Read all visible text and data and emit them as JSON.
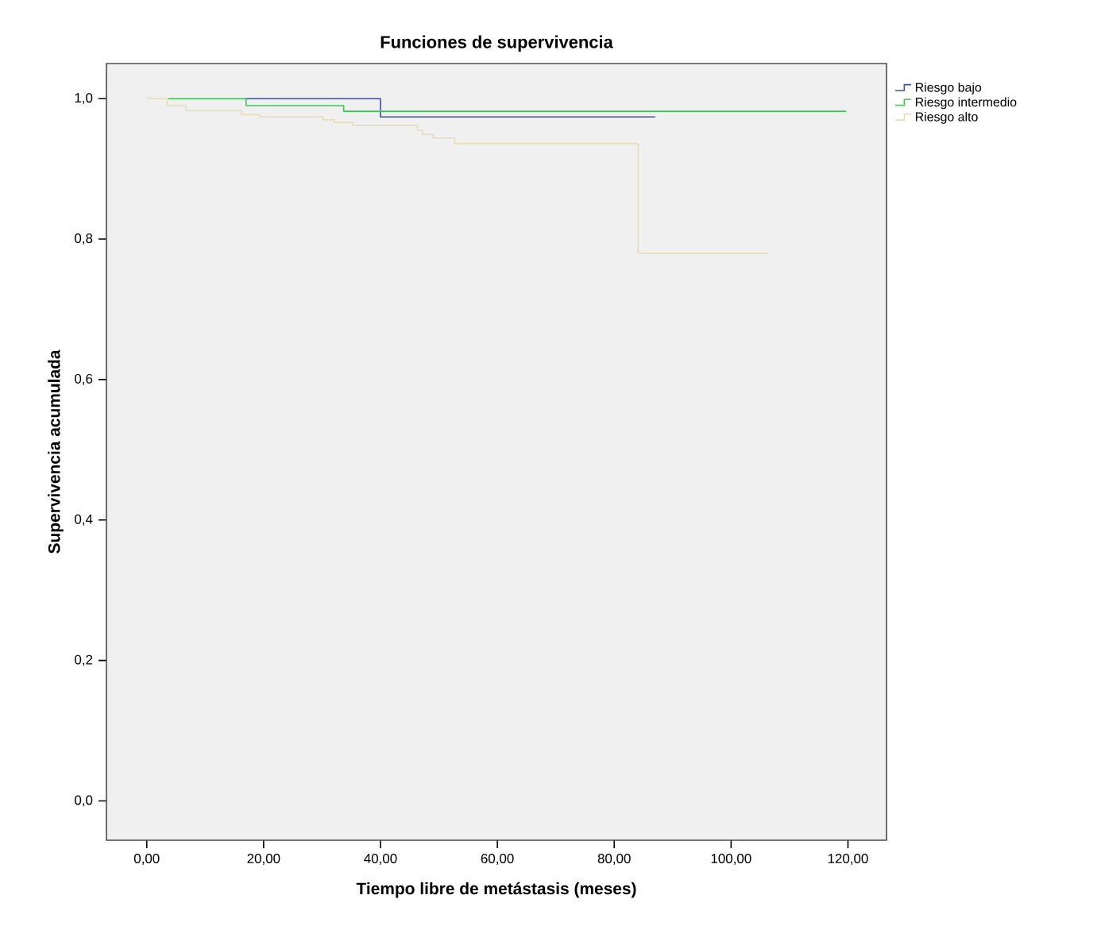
{
  "chart_data": {
    "type": "step",
    "title": "Funciones de supervivencia",
    "xlabel": "Tiempo libre de metástasis (meses)",
    "ylabel": "Supervivencia acumulada",
    "xlim": [
      -6.9,
      126.6
    ],
    "ylim": [
      -0.056,
      1.05
    ],
    "xticks": [
      {
        "value": 0,
        "label": "0,00"
      },
      {
        "value": 20,
        "label": "20,00"
      },
      {
        "value": 40,
        "label": "40,00"
      },
      {
        "value": 60,
        "label": "60,00"
      },
      {
        "value": 80,
        "label": "80,00"
      },
      {
        "value": 100,
        "label": "100,00"
      },
      {
        "value": 120,
        "label": "120,00"
      }
    ],
    "yticks": [
      {
        "value": 0,
        "label": "0,0"
      },
      {
        "value": 0.2,
        "label": "0,2"
      },
      {
        "value": 0.4,
        "label": "0,4"
      },
      {
        "value": 0.6,
        "label": "0,6"
      },
      {
        "value": 0.8,
        "label": "0,8"
      },
      {
        "value": 1.0,
        "label": "1,0"
      }
    ],
    "grid": false,
    "legend": "right",
    "line_style": "solid",
    "marker": "none",
    "series": [
      {
        "name": "Riesgo bajo",
        "color": "#3c50b4",
        "x": [
          17,
          40,
          87
        ],
        "values": [
          1.0,
          0.974,
          0.974
        ]
      },
      {
        "name": "Riesgo intermedio",
        "color": "#3cc850",
        "x": [
          3.7,
          17,
          33.7,
          119.7
        ],
        "values": [
          1.0,
          0.99,
          0.982,
          0.982
        ]
      },
      {
        "name": "Riesgo alto",
        "color": "#e6dcb4",
        "x": [
          0,
          3.5,
          6.7,
          16.2,
          19.4,
          30.2,
          32,
          35.2,
          46.3,
          47.2,
          49,
          52.7,
          84.1,
          106.5
        ],
        "values": [
          1.0,
          0.99,
          0.983,
          0.977,
          0.974,
          0.97,
          0.966,
          0.962,
          0.955,
          0.949,
          0.944,
          0.936,
          0.78,
          0.78
        ]
      }
    ]
  }
}
